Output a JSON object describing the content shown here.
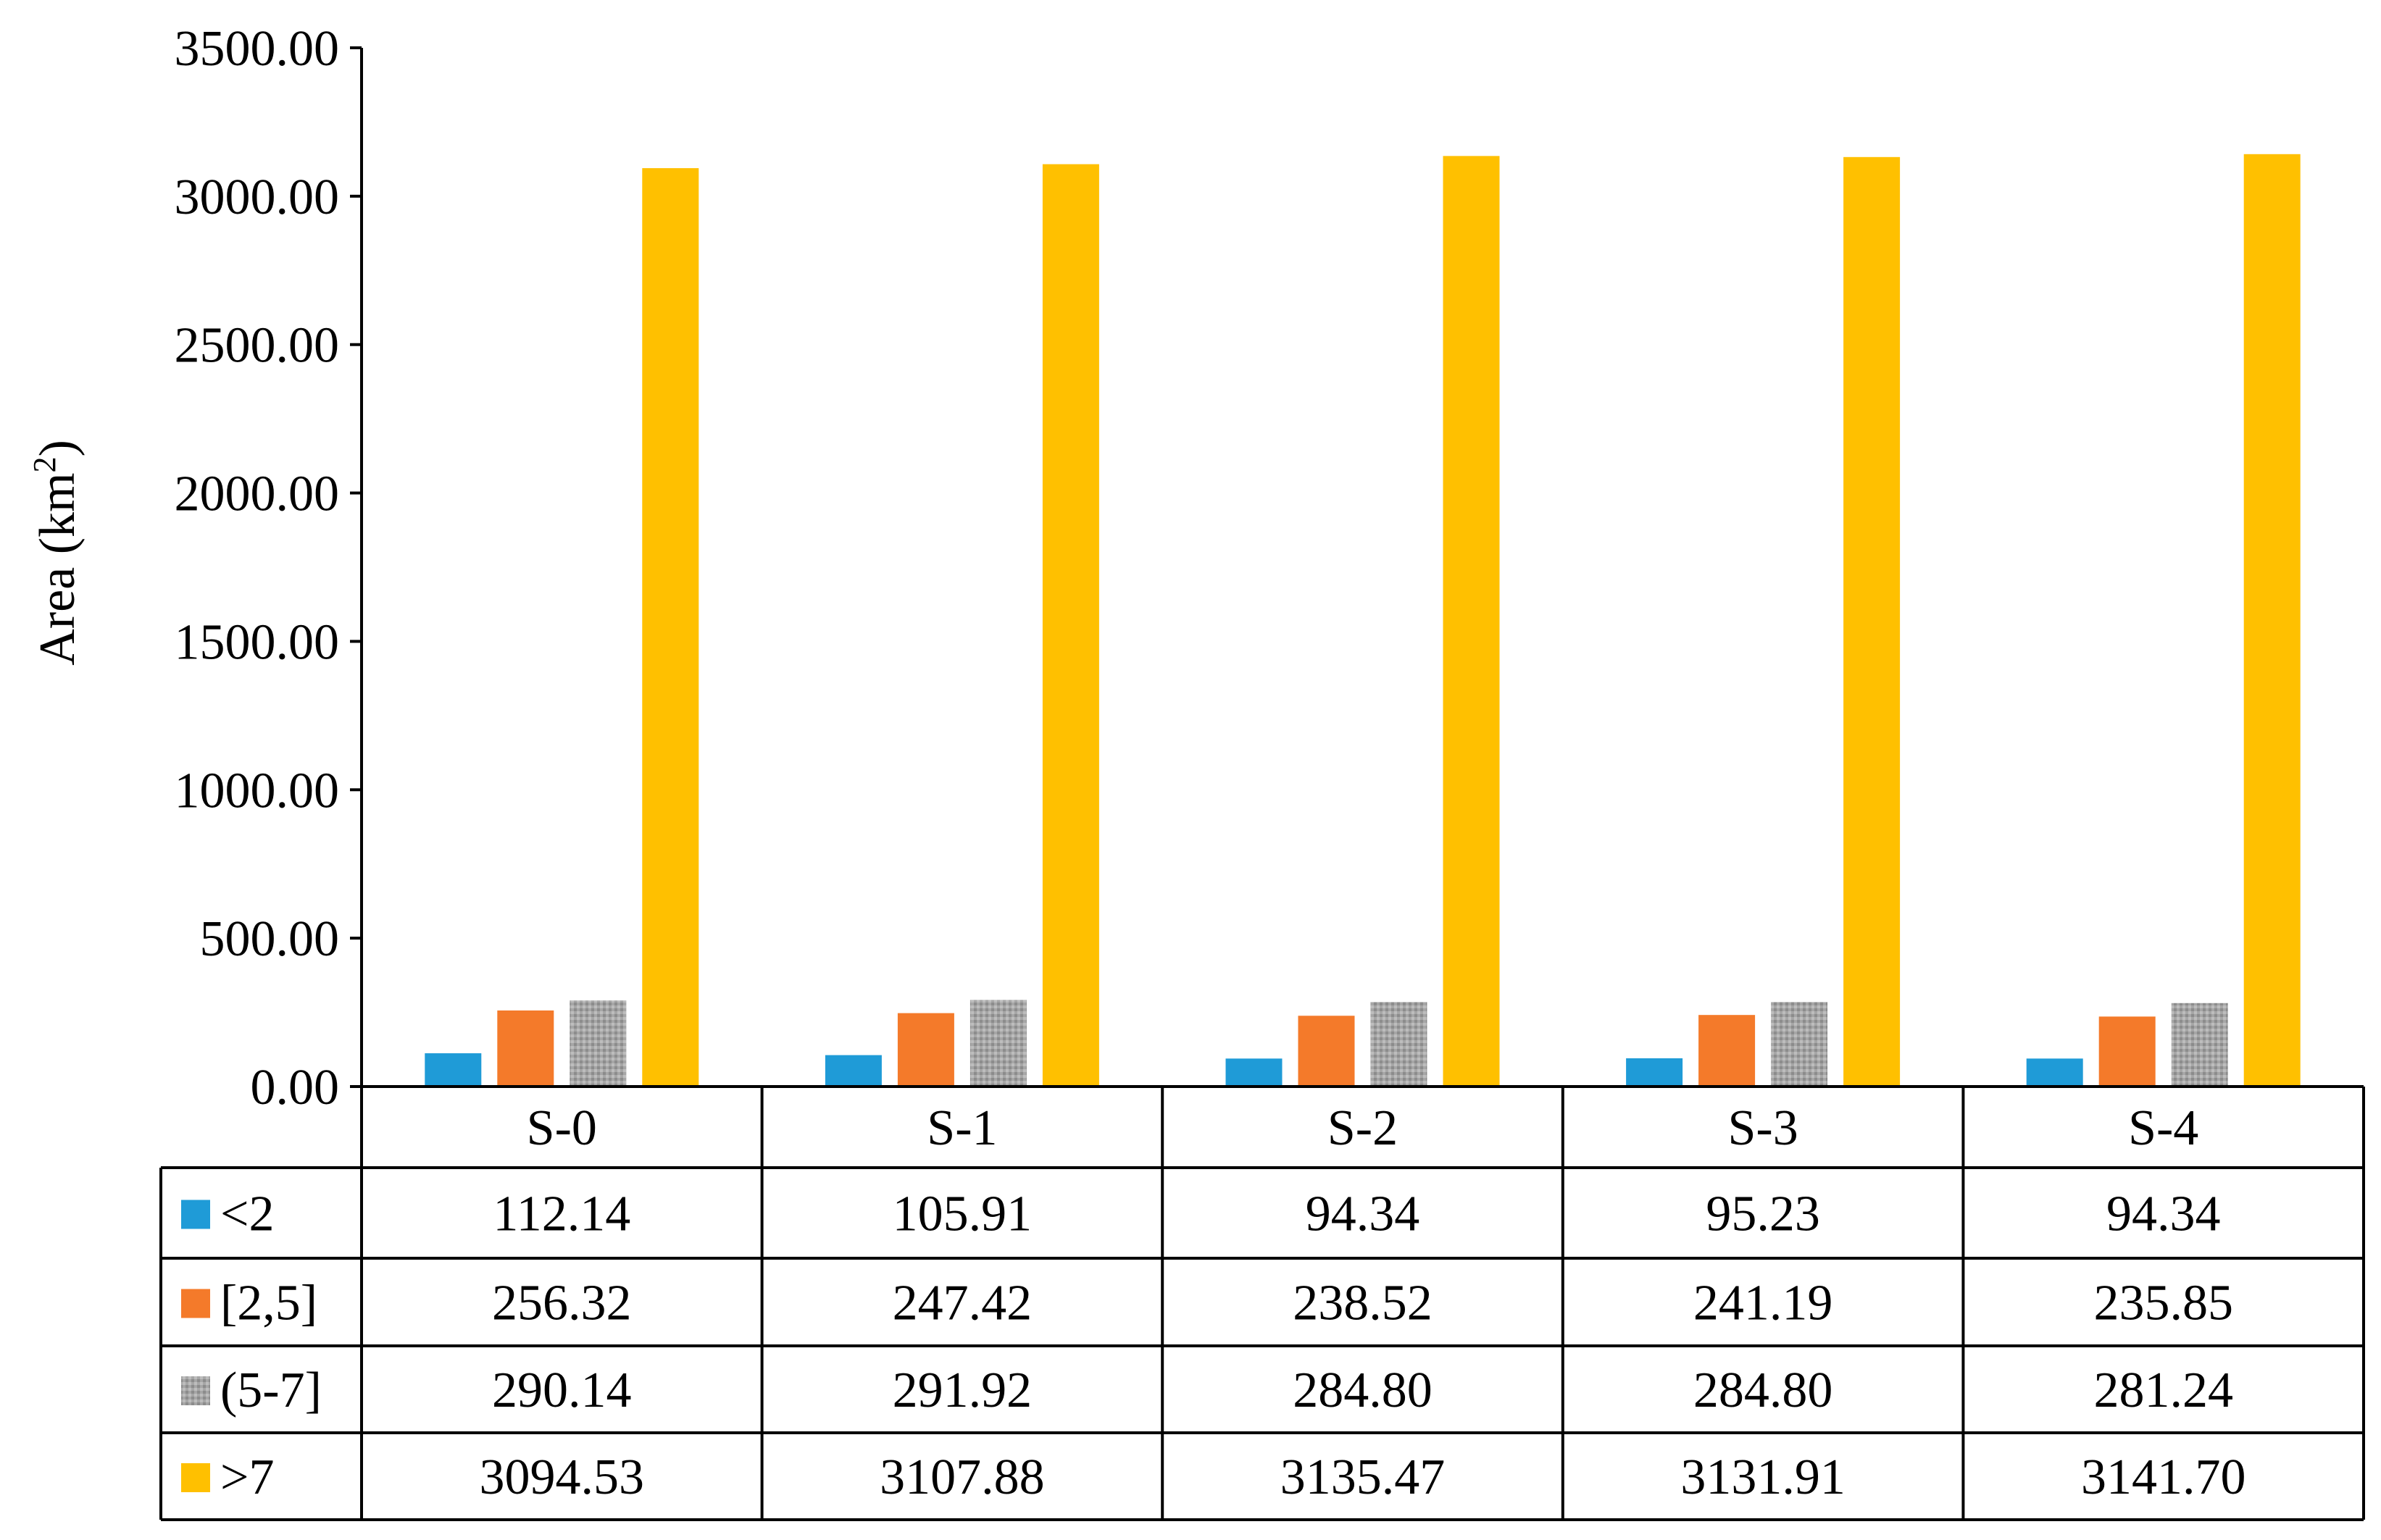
{
  "chart_data": {
    "type": "bar",
    "title": "",
    "xlabel": "",
    "ylabel": "Area (km",
    "ylabel_sup": "2",
    "ylabel_close": ")",
    "ylim": [
      0,
      3500
    ],
    "yticks": [
      "0.00",
      "500.00",
      "1000.00",
      "1500.00",
      "2000.00",
      "2500.00",
      "3000.00",
      "3500.00"
    ],
    "categories": [
      "S-0",
      "S-1",
      "S-2",
      "S-3",
      "S-4"
    ],
    "legend_position": "bottom data table",
    "series": [
      {
        "name": "<2",
        "color": "#1f9bd7",
        "pattern": "solid",
        "values": [
          112.14,
          105.91,
          94.34,
          95.23,
          94.34
        ],
        "labels": [
          "112.14",
          "105.91",
          "94.34",
          "95.23",
          "94.34"
        ]
      },
      {
        "name": "[2,5]",
        "color": "#f47a2a",
        "pattern": "solid",
        "values": [
          256.32,
          247.42,
          238.52,
          241.19,
          235.85
        ],
        "labels": [
          "256.32",
          "247.42",
          "238.52",
          "241.19",
          "235.85"
        ]
      },
      {
        "name": "(5-7]",
        "color": "#a6a6a6",
        "pattern": "dotted-texture",
        "values": [
          290.14,
          291.92,
          284.8,
          284.8,
          281.24
        ],
        "labels": [
          "290.14",
          "291.92",
          "284.80",
          "284.80",
          "281.24"
        ]
      },
      {
        "name": ">7",
        "color": "#ffc000",
        "pattern": "solid",
        "values": [
          3094.53,
          3107.88,
          3135.47,
          3131.91,
          3141.7
        ],
        "labels": [
          "3094.53",
          "3107.88",
          "3135.47",
          "3131.91",
          "3141.70"
        ]
      }
    ]
  }
}
